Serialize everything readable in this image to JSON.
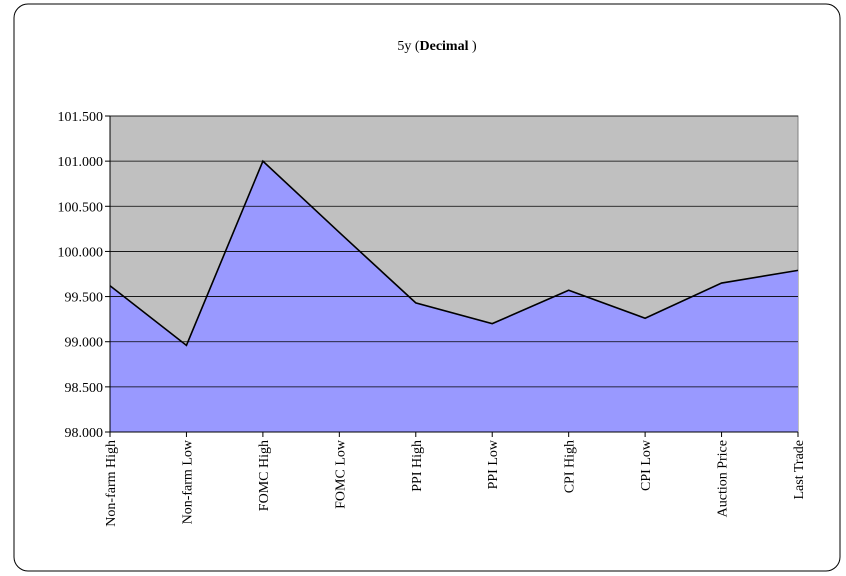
{
  "chart_data": {
    "type": "area",
    "title": [
      "5y (",
      "Decimal",
      " )"
    ],
    "categories": [
      "Non-farm High",
      "Non-farm Low",
      "FOMC High",
      "FOMC Low",
      "PPI High",
      "PPI Low",
      "CPI High",
      "CPI Low",
      "Auction Price",
      "Last Trade"
    ],
    "values": [
      99.62,
      98.96,
      101.0,
      100.21,
      99.43,
      99.2,
      99.57,
      99.26,
      99.65,
      99.79
    ],
    "color": "#9999ff",
    "line_color": "#000000",
    "plot_background": "#c0c0c0",
    "ylim": [
      98.0,
      101.5
    ],
    "yticks": [
      {
        "value": 98.0,
        "label": "98.000"
      },
      {
        "value": 98.5,
        "label": "98.500"
      },
      {
        "value": 99.0,
        "label": "99.000"
      },
      {
        "value": 99.5,
        "label": "99.500"
      },
      {
        "value": 100.0,
        "label": "100.000"
      },
      {
        "value": 100.5,
        "label": "100.500"
      },
      {
        "value": 101.0,
        "label": "101.000"
      },
      {
        "value": 101.5,
        "label": "101.500"
      }
    ],
    "grid": true
  }
}
